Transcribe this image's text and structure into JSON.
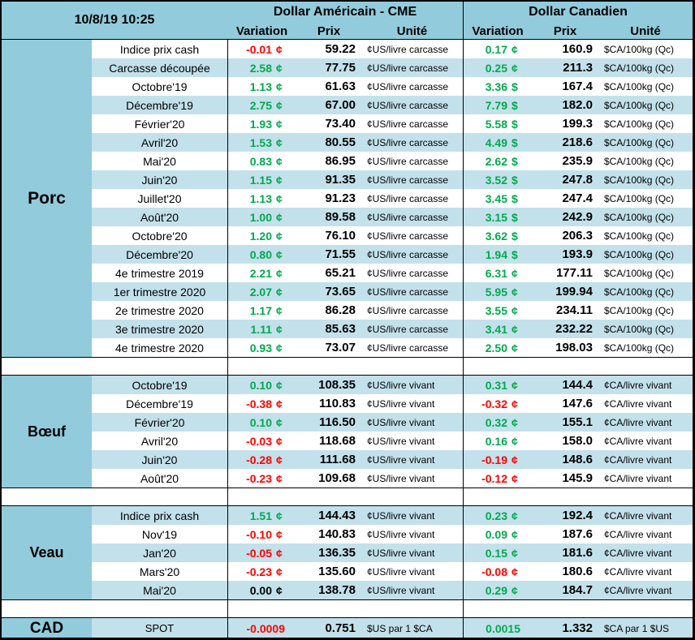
{
  "meta": {
    "timestamp": "10/8/19 10:25"
  },
  "colors": {
    "header_bg": "#92CBDC",
    "stripe_bg": "#C3E1EB",
    "up": "#00A94F",
    "down": "#FF0000",
    "flat": "#000000"
  },
  "header": {
    "us_title": "Dollar Américain - CME",
    "ca_title": "Dollar Canadien",
    "col_variation": "Variation",
    "col_prix": "Prix",
    "col_unite": "Unité"
  },
  "sections": [
    {
      "name": "Porc",
      "us_unit": "¢US/livre carcasse",
      "ca_unit": "$CA/100kg (Qc)",
      "rows": [
        {
          "label": "Indice prix cash",
          "us_var": "-0.01",
          "us_sym": "¢",
          "us_prix": "59.22",
          "ca_var": "0.17",
          "ca_sym": "¢",
          "ca_prix": "160.9"
        },
        {
          "label": "Carcasse découpée",
          "us_var": "2.58",
          "us_sym": "¢",
          "us_prix": "77.75",
          "ca_var": "0.25",
          "ca_sym": "¢",
          "ca_prix": "211.3"
        },
        {
          "label": "Octobre'19",
          "us_var": "1.13",
          "us_sym": "¢",
          "us_prix": "61.63",
          "ca_var": "3.36",
          "ca_sym": "$",
          "ca_prix": "167.4"
        },
        {
          "label": "Décembre'19",
          "us_var": "2.75",
          "us_sym": "¢",
          "us_prix": "67.00",
          "ca_var": "7.79",
          "ca_sym": "$",
          "ca_prix": "182.0"
        },
        {
          "label": "Février'20",
          "us_var": "1.93",
          "us_sym": "¢",
          "us_prix": "73.40",
          "ca_var": "5.58",
          "ca_sym": "$",
          "ca_prix": "199.3"
        },
        {
          "label": "Avril'20",
          "us_var": "1.53",
          "us_sym": "¢",
          "us_prix": "80.55",
          "ca_var": "4.49",
          "ca_sym": "$",
          "ca_prix": "218.6"
        },
        {
          "label": "Mai'20",
          "us_var": "0.83",
          "us_sym": "¢",
          "us_prix": "86.95",
          "ca_var": "2.62",
          "ca_sym": "$",
          "ca_prix": "235.9"
        },
        {
          "label": "Juin'20",
          "us_var": "1.15",
          "us_sym": "¢",
          "us_prix": "91.35",
          "ca_var": "3.52",
          "ca_sym": "$",
          "ca_prix": "247.8"
        },
        {
          "label": "Juillet'20",
          "us_var": "1.13",
          "us_sym": "¢",
          "us_prix": "91.23",
          "ca_var": "3.45",
          "ca_sym": "$",
          "ca_prix": "247.4"
        },
        {
          "label": "Août'20",
          "us_var": "1.00",
          "us_sym": "¢",
          "us_prix": "89.58",
          "ca_var": "3.15",
          "ca_sym": "$",
          "ca_prix": "242.9"
        },
        {
          "label": "Octobre'20",
          "us_var": "1.20",
          "us_sym": "¢",
          "us_prix": "76.10",
          "ca_var": "3.62",
          "ca_sym": "$",
          "ca_prix": "206.3"
        },
        {
          "label": "Décembre'20",
          "us_var": "0.80",
          "us_sym": "¢",
          "us_prix": "71.55",
          "ca_var": "1.94",
          "ca_sym": "$",
          "ca_prix": "193.9"
        },
        {
          "label": "4e trimestre 2019",
          "us_var": "2.21",
          "us_sym": "¢",
          "us_prix": "65.21",
          "ca_var": "6.31",
          "ca_sym": "¢",
          "ca_prix": "177.11"
        },
        {
          "label": "1er trimestre 2020",
          "us_var": "2.07",
          "us_sym": "¢",
          "us_prix": "73.65",
          "ca_var": "5.95",
          "ca_sym": "¢",
          "ca_prix": "199.94"
        },
        {
          "label": "2e trimestre 2020",
          "us_var": "1.17",
          "us_sym": "¢",
          "us_prix": "86.28",
          "ca_var": "3.55",
          "ca_sym": "¢",
          "ca_prix": "234.11"
        },
        {
          "label": "3e trimestre 2020",
          "us_var": "1.11",
          "us_sym": "¢",
          "us_prix": "85.63",
          "ca_var": "3.41",
          "ca_sym": "¢",
          "ca_prix": "232.22"
        },
        {
          "label": "4e trimestre 2020",
          "us_var": "0.93",
          "us_sym": "¢",
          "us_prix": "73.07",
          "ca_var": "2.50",
          "ca_sym": "¢",
          "ca_prix": "198.03"
        }
      ]
    },
    {
      "name": "Bœuf",
      "us_unit": "¢US/livre vivant",
      "ca_unit": "¢CA/livre vivant",
      "rows": [
        {
          "label": "Octobre'19",
          "us_var": "0.10",
          "us_sym": "¢",
          "us_prix": "108.35",
          "ca_var": "0.31",
          "ca_sym": "¢",
          "ca_prix": "144.4"
        },
        {
          "label": "Décembre'19",
          "us_var": "-0.38",
          "us_sym": "¢",
          "us_prix": "110.83",
          "ca_var": "-0.32",
          "ca_sym": "¢",
          "ca_prix": "147.6"
        },
        {
          "label": "Février'20",
          "us_var": "0.10",
          "us_sym": "¢",
          "us_prix": "116.50",
          "ca_var": "0.32",
          "ca_sym": "¢",
          "ca_prix": "155.1"
        },
        {
          "label": "Avril'20",
          "us_var": "-0.03",
          "us_sym": "¢",
          "us_prix": "118.68",
          "ca_var": "0.16",
          "ca_sym": "¢",
          "ca_prix": "158.0"
        },
        {
          "label": "Juin'20",
          "us_var": "-0.28",
          "us_sym": "¢",
          "us_prix": "111.68",
          "ca_var": "-0.19",
          "ca_sym": "¢",
          "ca_prix": "148.6"
        },
        {
          "label": "Août'20",
          "us_var": "-0.23",
          "us_sym": "¢",
          "us_prix": "109.68",
          "ca_var": "-0.12",
          "ca_sym": "¢",
          "ca_prix": "145.9"
        }
      ]
    },
    {
      "name": "Veau",
      "us_unit": "¢US/livre vivant",
      "ca_unit": "¢CA/livre vivant",
      "rows": [
        {
          "label": "Indice prix cash",
          "us_var": "1.51",
          "us_sym": "¢",
          "us_prix": "144.43",
          "ca_var": "0.23",
          "ca_sym": "¢",
          "ca_prix": "192.4"
        },
        {
          "label": "Nov'19",
          "us_var": "-0.10",
          "us_sym": "¢",
          "us_prix": "140.83",
          "ca_var": "0.09",
          "ca_sym": "¢",
          "ca_prix": "187.6"
        },
        {
          "label": "Jan'20",
          "us_var": "-0.05",
          "us_sym": "¢",
          "us_prix": "136.35",
          "ca_var": "0.15",
          "ca_sym": "¢",
          "ca_prix": "181.6"
        },
        {
          "label": "Mars'20",
          "us_var": "-0.23",
          "us_sym": "¢",
          "us_prix": "135.60",
          "ca_var": "-0.08",
          "ca_sym": "¢",
          "ca_prix": "180.6"
        },
        {
          "label": "Mai'20",
          "us_var": "0.00",
          "us_sym": "¢",
          "us_prix": "138.78",
          "ca_var": "0.29",
          "ca_sym": "¢",
          "ca_prix": "184.7"
        }
      ]
    },
    {
      "name": "CAD",
      "us_unit": "$US par 1 $CA",
      "ca_unit": "$CA par 1 $US",
      "rows": [
        {
          "label": "SPOT",
          "us_var": "-0.0009",
          "us_sym": "",
          "us_prix": "0.751",
          "ca_var": "0.0015",
          "ca_sym": "",
          "ca_prix": "1.332"
        }
      ]
    }
  ]
}
